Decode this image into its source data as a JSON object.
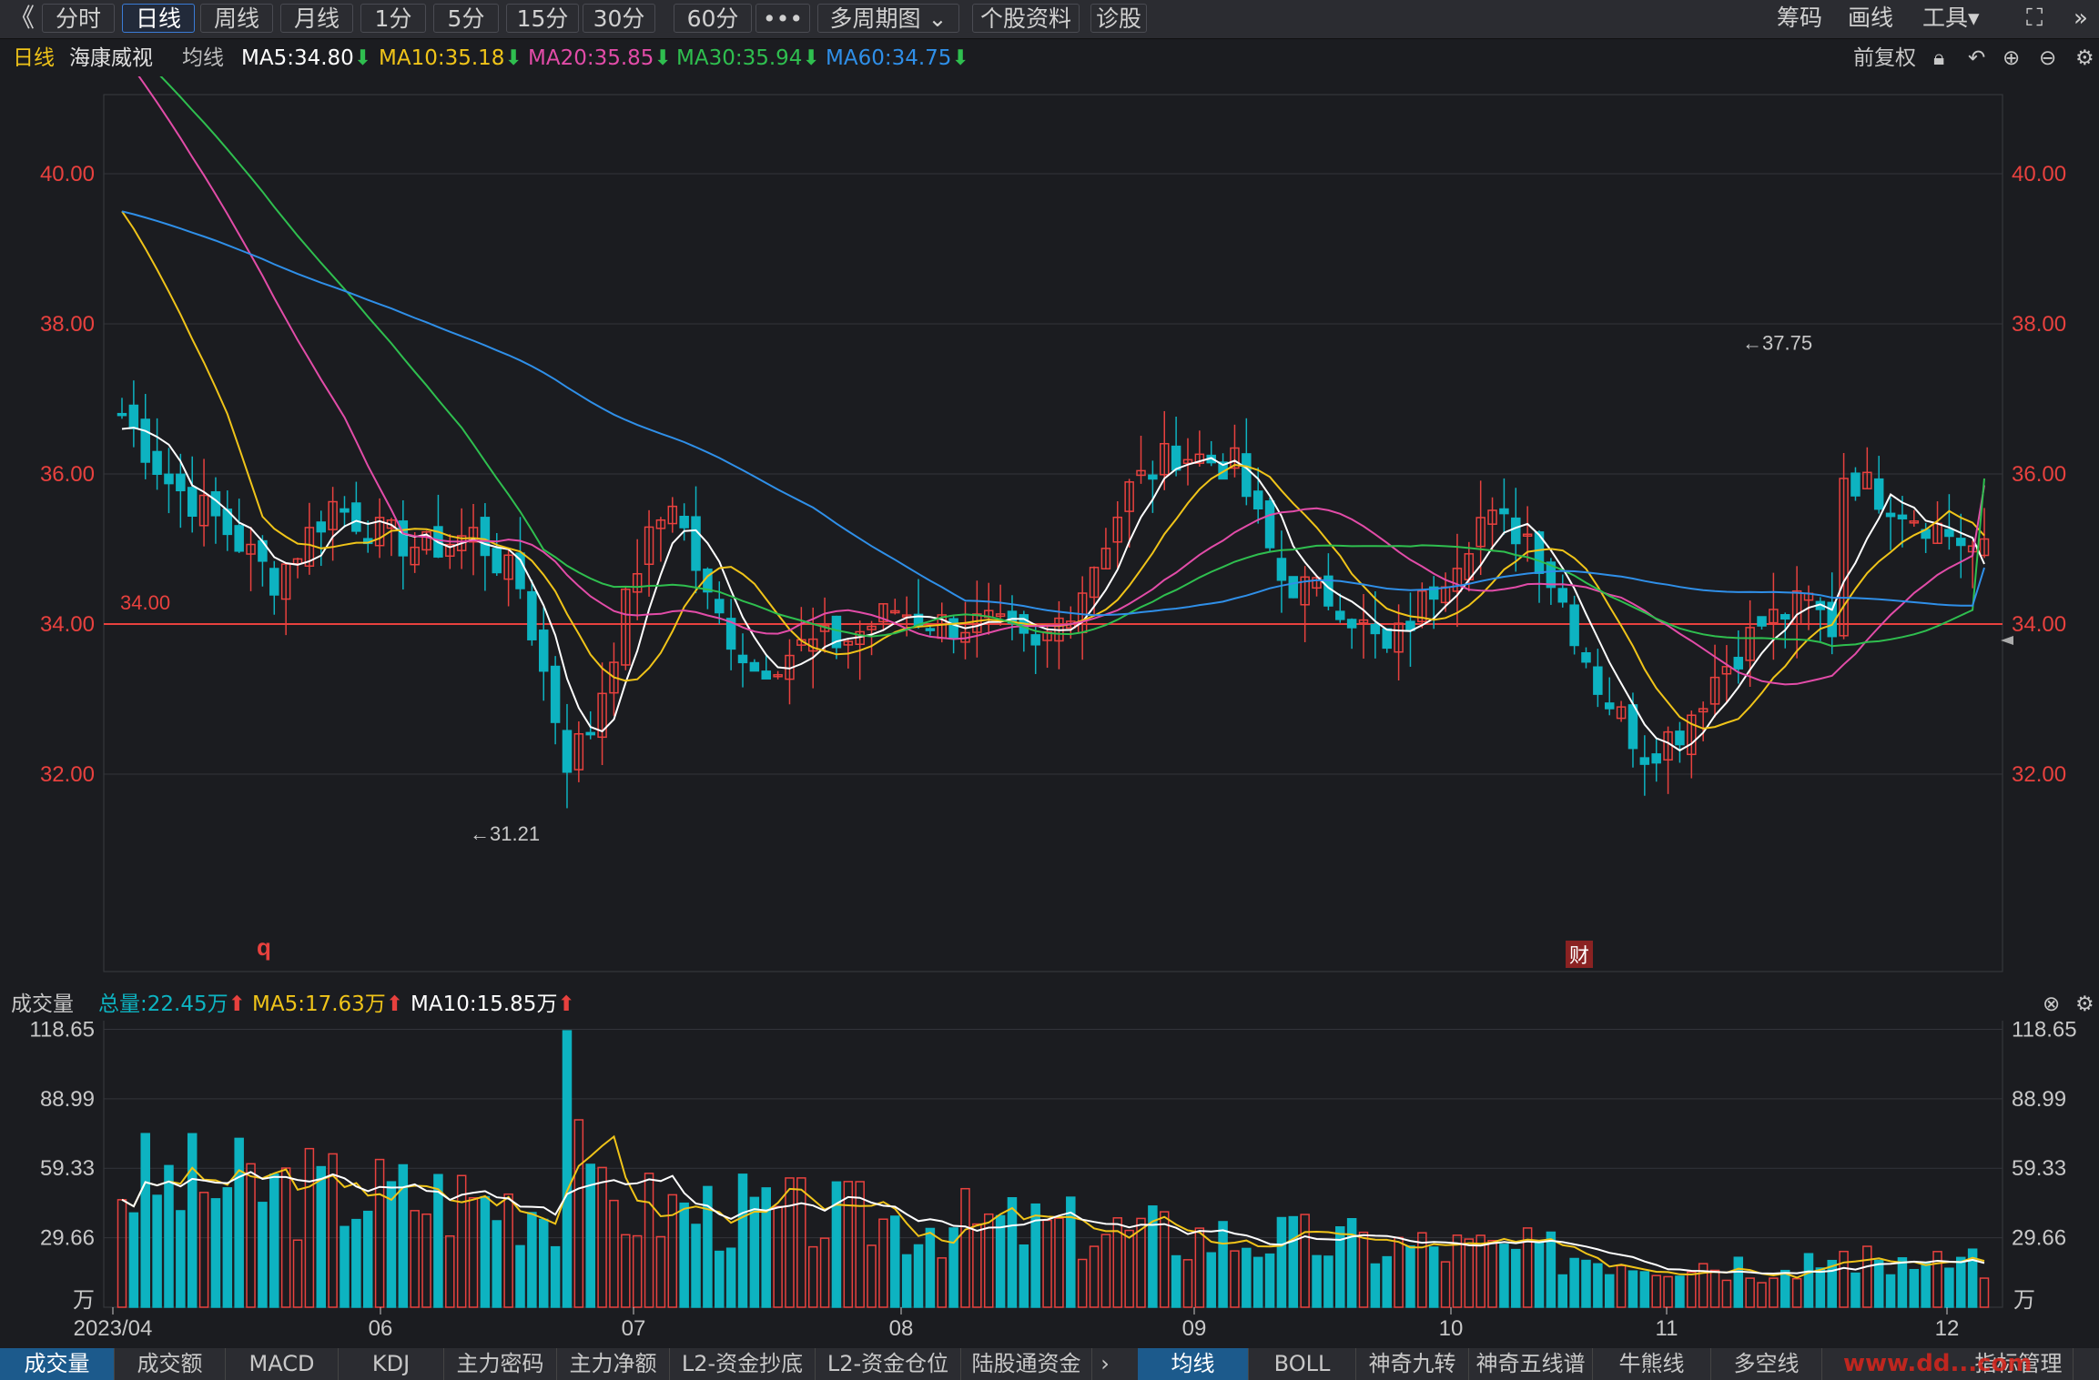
{
  "toolbar": {
    "back_icon": "double-chevron-left-icon",
    "tabs": [
      {
        "label": "分时",
        "active": false
      },
      {
        "label": "日线",
        "active": true
      },
      {
        "label": "周线",
        "active": false
      },
      {
        "label": "月线",
        "active": false
      },
      {
        "label": "1分",
        "active": false
      },
      {
        "label": "5分",
        "active": false
      },
      {
        "label": "15分",
        "active": false
      },
      {
        "label": "30分",
        "active": false
      },
      {
        "label": "60分",
        "active": false
      },
      {
        "label": "•••",
        "active": false
      },
      {
        "label": "多周期图 ⌄",
        "active": false
      },
      {
        "label": "个股资料",
        "active": false
      },
      {
        "label": "诊股",
        "active": false
      }
    ],
    "right": {
      "chips": "筹码",
      "draw": "画线",
      "tools": "工具▾",
      "fullscreen_icon": "fullscreen-icon",
      "collapse_icon": "double-chevron-right-icon"
    }
  },
  "info": {
    "period": "日线",
    "stock": "海康威视",
    "ma_label": "均线",
    "ma5": "MA5:34.80",
    "ma10": "MA10:35.18",
    "ma20": "MA20:35.85",
    "ma30": "MA30:35.94",
    "ma60": "MA60:34.75",
    "adjust": "前复权"
  },
  "colors": {
    "up": "#e8413e",
    "down": "#0db3c1",
    "ma5": "#ffffff",
    "ma10": "#f0c419",
    "ma20": "#e24ca8",
    "ma30": "#2fbf4f",
    "ma60": "#2f8fe8",
    "axis": "#e8413e",
    "bg": "#1b1c20"
  },
  "chart_data": [
    {
      "type": "candlestick",
      "title": "海康威视 日线",
      "y_ticks": [
        "40.00",
        "38.00",
        "36.00",
        "34.00",
        "32.00"
      ],
      "ylim": [
        30.3,
        42.0
      ],
      "reference_line": {
        "value": 34.0,
        "label": "34.00"
      },
      "annotations": {
        "high": "←37.75",
        "low": "←31.21",
        "marker_q": "q",
        "marker_cai": "财"
      },
      "x_ticks": [
        "2023/04",
        "06",
        "07",
        "08",
        "09",
        "10",
        "11",
        "12"
      ],
      "ma_series": [
        {
          "name": "MA5",
          "start": 36.6,
          "end": 34.8
        },
        {
          "name": "MA10",
          "start": 39.5,
          "end": 35.18
        },
        {
          "name": "MA20",
          "start": 41.6,
          "end": 35.85
        },
        {
          "name": "MA30",
          "start": 41.8,
          "end": 35.94
        },
        {
          "name": "MA60",
          "start": 39.5,
          "end": 34.75
        }
      ],
      "candles": []
    },
    {
      "type": "bar",
      "title": "成交量",
      "unit": "万",
      "y_ticks": [
        "118.65",
        "88.99",
        "59.33",
        "29.66"
      ],
      "ylim": [
        0,
        120
      ],
      "totals": {
        "total": "总量:22.45万",
        "ma5": "MA5:17.63万",
        "ma10": "MA10:15.85万"
      }
    }
  ],
  "volume_header": {
    "label": "成交量",
    "total": "总量:22.45万",
    "ma5": "MA5:17.63万",
    "ma10": "MA10:15.85万"
  },
  "bottom_tabs_left": [
    "成交量",
    "成交额",
    "MACD",
    "KDJ",
    "主力密码",
    "主力净额",
    "L2-资金抄底",
    "L2-资金仓位",
    "陆股通资金"
  ],
  "bottom_tabs_right": [
    "均线",
    "BOLL",
    "神奇九转",
    "神奇五线谱",
    "牛熊线",
    "多空线",
    "指标管理"
  ],
  "watermark": "www.dd...com"
}
